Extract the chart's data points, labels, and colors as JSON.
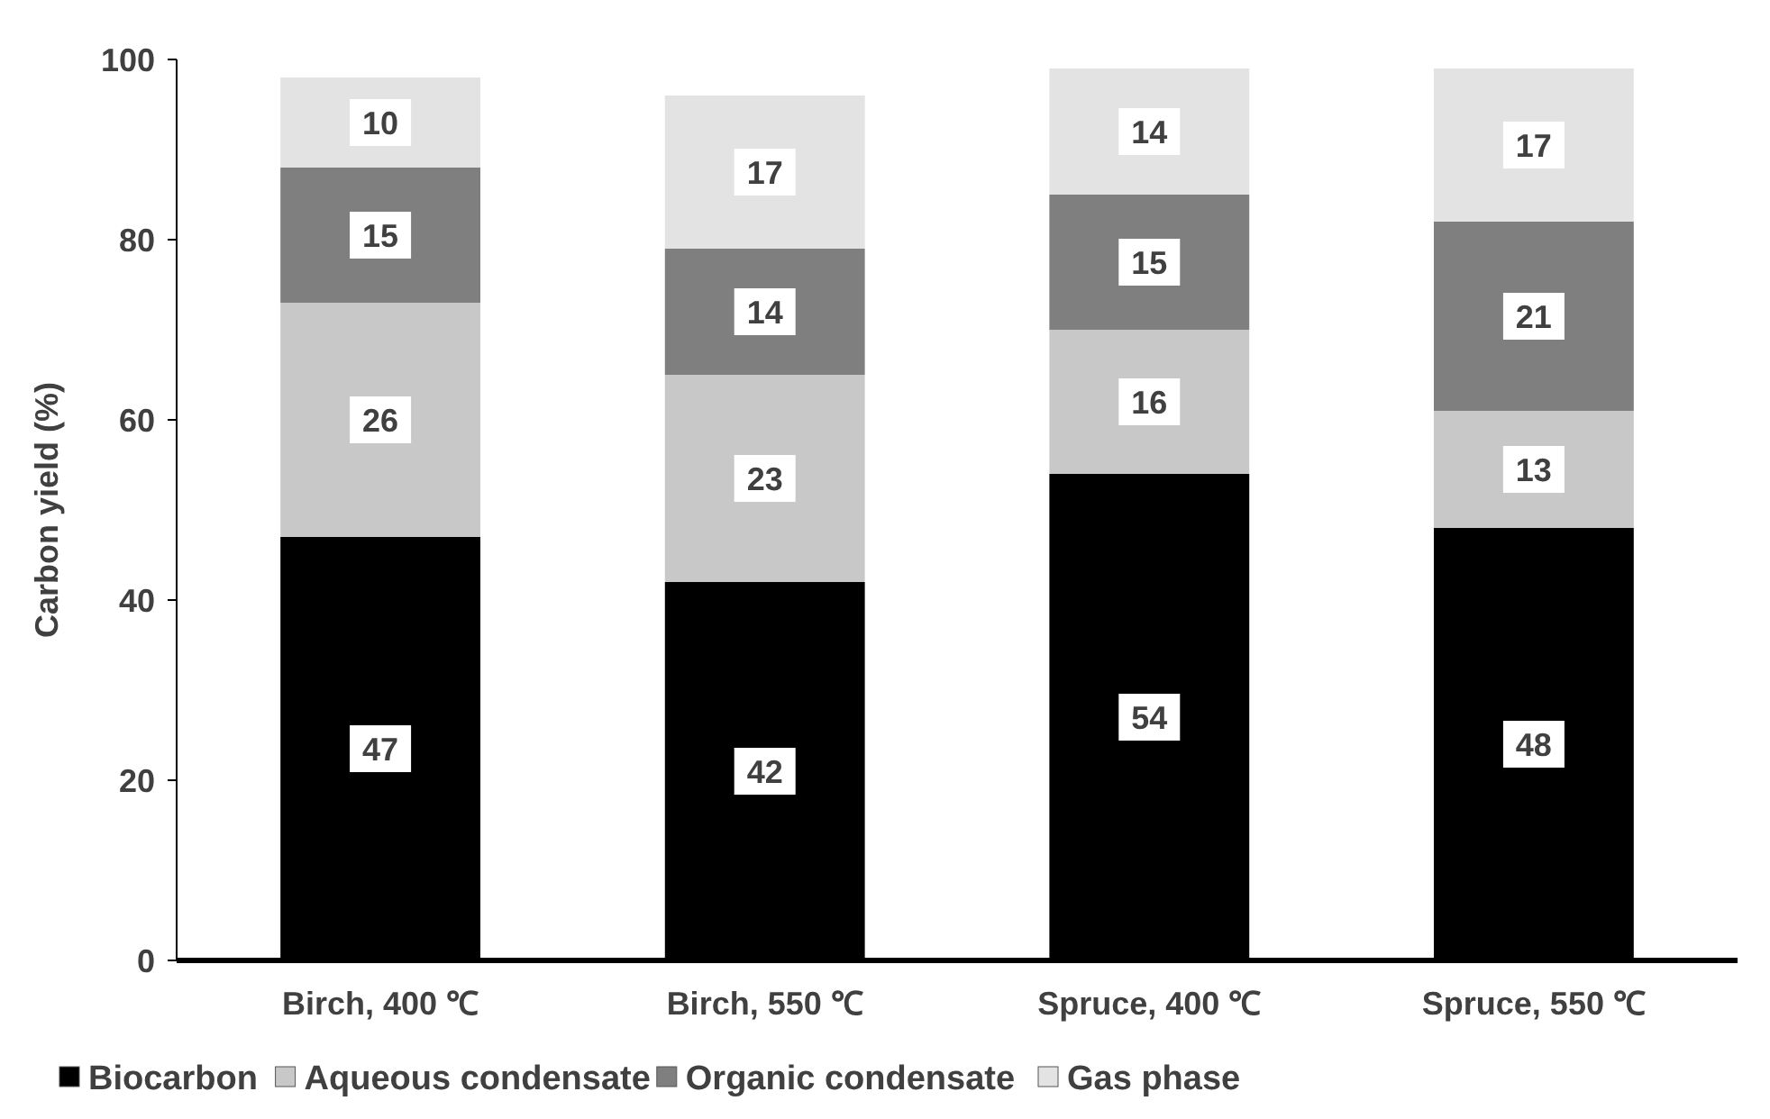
{
  "chart_data": {
    "type": "bar",
    "stacked": true,
    "ylabel": "Carbon yield (%)",
    "categories": [
      "Birch, 400 ℃",
      "Birch, 550 ℃",
      "Spruce, 400 ℃",
      "Spruce, 550 ℃"
    ],
    "series": [
      {
        "name": "Biocarbon",
        "color": "#000000",
        "values": [
          47,
          42,
          54,
          48
        ]
      },
      {
        "name": "Aqueous condensate",
        "color": "#c8c8c8",
        "values": [
          26,
          23,
          16,
          13
        ]
      },
      {
        "name": "Organic condensate",
        "color": "#7f7f7f",
        "values": [
          15,
          14,
          15,
          21
        ]
      },
      {
        "name": "Gas phase",
        "color": "#e3e3e3",
        "values": [
          10,
          17,
          14,
          17
        ]
      }
    ],
    "ylim": [
      0,
      100
    ],
    "yticks": [
      0,
      20,
      40,
      60,
      80,
      100
    ],
    "data_labels": true,
    "legend": "bottom",
    "grid": false
  }
}
